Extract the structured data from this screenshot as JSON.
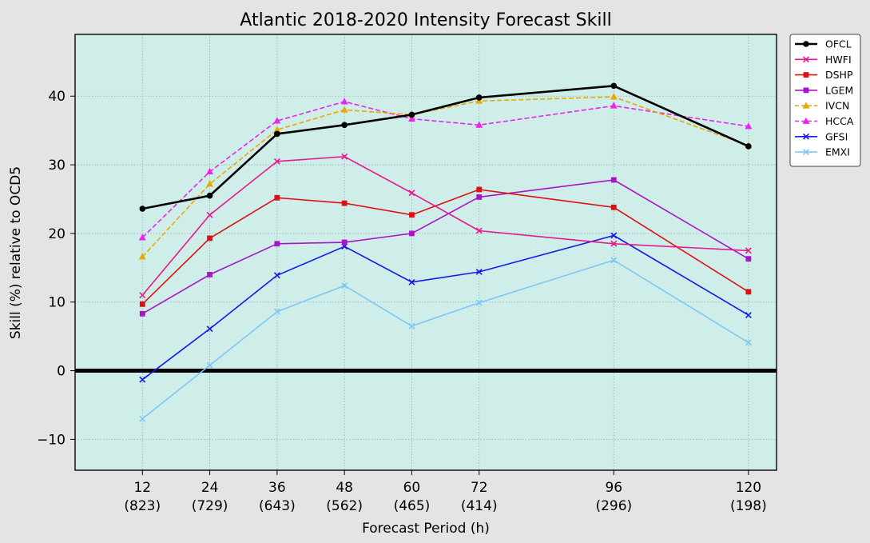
{
  "chart_data": {
    "type": "line",
    "title": "Atlantic 2018-2020 Intensity Forecast Skill",
    "xlabel": "Forecast Period (h)",
    "ylabel": "Skill (%) relative to OCD5",
    "x": [
      12,
      24,
      36,
      48,
      60,
      72,
      96,
      120
    ],
    "x_tick_labels": [
      "12",
      "24",
      "36",
      "48",
      "60",
      "72",
      "96",
      "120"
    ],
    "x_tick_counts": [
      "(823)",
      "(729)",
      "(643)",
      "(562)",
      "(465)",
      "(414)",
      "(296)",
      "(198)"
    ],
    "xlim": [
      0,
      125
    ],
    "ylim": [
      -14.5,
      49
    ],
    "y_ticks": [
      -10,
      0,
      10,
      20,
      30,
      40
    ],
    "y_tick_labels": [
      "−10",
      "0",
      "10",
      "20",
      "30",
      "40"
    ],
    "grid": true,
    "legend_position": "outside-right",
    "background_color": "#cfede9",
    "zero_line_color": "#000000",
    "series": [
      {
        "name": "OFCL",
        "color": "#000000",
        "dash": false,
        "marker": "circle",
        "width": 2.6,
        "values": [
          23.6,
          25.5,
          34.5,
          35.8,
          37.3,
          39.8,
          41.5,
          32.7
        ]
      },
      {
        "name": "HWFI",
        "color": "#e8188c",
        "dash": false,
        "marker": "x",
        "width": 1.6,
        "values": [
          11.0,
          22.7,
          30.5,
          31.2,
          25.9,
          20.4,
          18.5,
          17.5
        ]
      },
      {
        "name": "DSHP",
        "color": "#dd1111",
        "dash": false,
        "marker": "square",
        "width": 1.6,
        "values": [
          9.7,
          19.3,
          25.2,
          24.4,
          22.7,
          26.4,
          23.8,
          11.5
        ]
      },
      {
        "name": "LGEM",
        "color": "#a815c8",
        "dash": false,
        "marker": "square",
        "width": 1.6,
        "values": [
          8.3,
          14.0,
          18.5,
          18.7,
          20.0,
          25.3,
          27.8,
          16.3
        ]
      },
      {
        "name": "IVCN",
        "color": "#e8a900",
        "dash": true,
        "marker": "triangle",
        "width": 1.6,
        "values": [
          16.6,
          27.2,
          35.1,
          38.0,
          37.3,
          39.3,
          39.9,
          32.8
        ]
      },
      {
        "name": "HCCA",
        "color": "#ee22ee",
        "dash": true,
        "marker": "triangle",
        "width": 1.6,
        "values": [
          19.4,
          29.0,
          36.4,
          39.2,
          36.7,
          35.8,
          38.6,
          35.6
        ]
      },
      {
        "name": "GFSI",
        "color": "#1818e8",
        "dash": false,
        "marker": "x",
        "width": 1.6,
        "values": [
          -1.3,
          6.1,
          13.9,
          18.1,
          12.9,
          14.4,
          19.7,
          8.1
        ]
      },
      {
        "name": "EMXI",
        "color": "#7ec8f5",
        "dash": false,
        "marker": "x",
        "width": 1.6,
        "values": [
          -7.0,
          0.8,
          8.6,
          12.4,
          6.5,
          9.9,
          16.1,
          4.1
        ]
      }
    ]
  }
}
